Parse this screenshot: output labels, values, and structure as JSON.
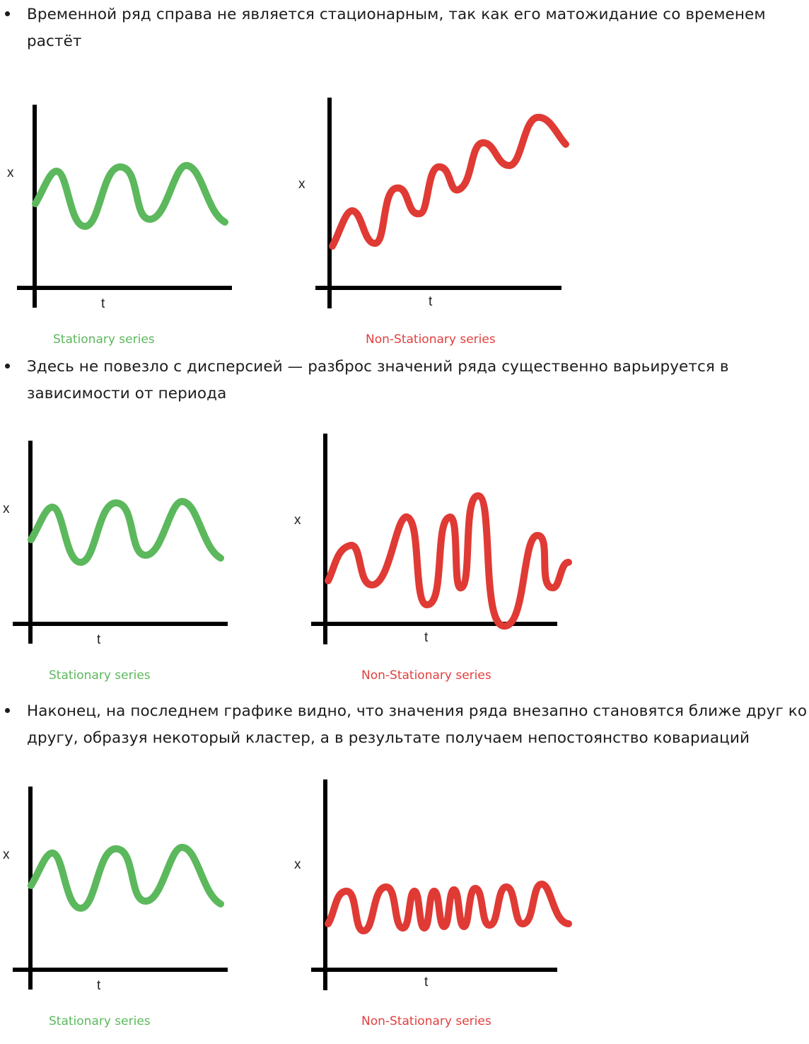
{
  "colors": {
    "stationary": "#5cb85c",
    "non_stationary": "#e03a35",
    "axis": "#000000"
  },
  "sections": [
    {
      "bullet": "Временной ряд справа не является стационарным, так как его матожидание со временем растёт",
      "left_chart": {
        "axis_x_label": "x",
        "axis_t_label": "t",
        "caption": "Stationary series"
      },
      "right_chart": {
        "axis_x_label": "x",
        "axis_t_label": "t",
        "caption": "Non-Stationary series"
      }
    },
    {
      "bullet": "Здесь не повезло с дисперсией — разброс значений ряда существенно варьируется в зависимости от периода",
      "left_chart": {
        "axis_x_label": "x",
        "axis_t_label": "t",
        "caption": "Stationary series"
      },
      "right_chart": {
        "axis_x_label": "x",
        "axis_t_label": "t",
        "caption": "Non-Stationary series"
      }
    },
    {
      "bullet": "Наконец, на последнем графике видно, что значения ряда внезапно становятся ближе друг ко другу, образуя некоторый кластер, а в результате получаем непостоянство ковариаций",
      "left_chart": {
        "axis_x_label": "x",
        "axis_t_label": "t",
        "caption": "Stationary series"
      },
      "right_chart": {
        "axis_x_label": "x",
        "axis_t_label": "t",
        "caption": "Non-Stationary series"
      }
    }
  ]
}
